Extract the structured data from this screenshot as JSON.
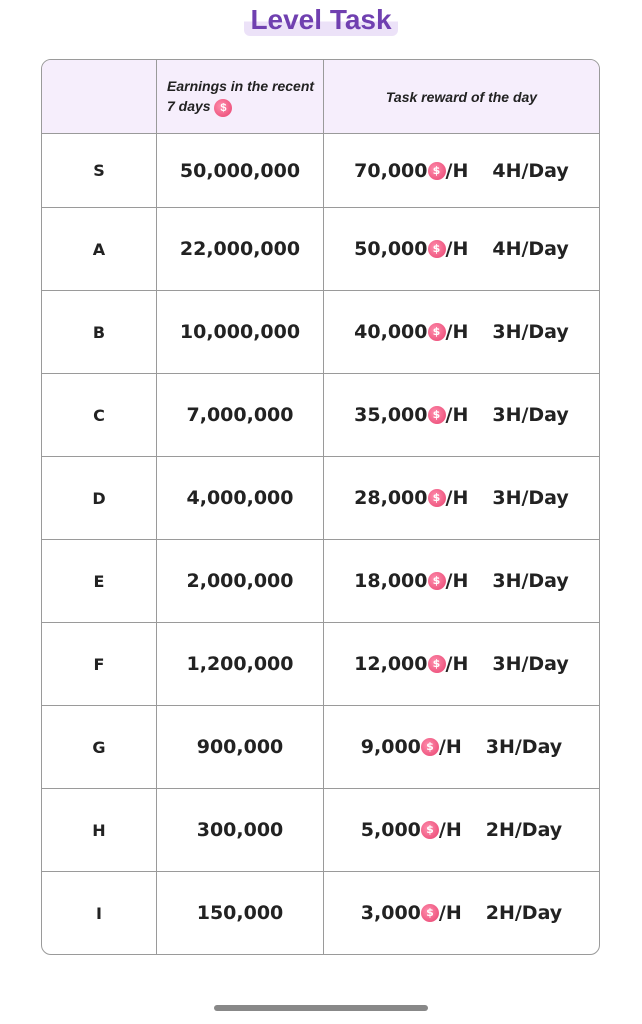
{
  "title": "Level Task",
  "headers": {
    "level": "",
    "earnings": "Earnings in the recent 7 days",
    "reward": "Task reward of the day"
  },
  "coin_icon": "pink-coin-icon",
  "per_hour": "/H",
  "rows": [
    {
      "level": "S",
      "earnings": "50,000,000",
      "reward": "70,000",
      "hours": "4H/Day"
    },
    {
      "level": "A",
      "earnings": "22,000,000",
      "reward": "50,000",
      "hours": "4H/Day"
    },
    {
      "level": "B",
      "earnings": "10,000,000",
      "reward": "40,000",
      "hours": "3H/Day"
    },
    {
      "level": "C",
      "earnings": "7,000,000",
      "reward": "35,000",
      "hours": "3H/Day"
    },
    {
      "level": "D",
      "earnings": "4,000,000",
      "reward": "28,000",
      "hours": "3H/Day"
    },
    {
      "level": "E",
      "earnings": "2,000,000",
      "reward": "18,000",
      "hours": "3H/Day"
    },
    {
      "level": "F",
      "earnings": "1,200,000",
      "reward": "12,000",
      "hours": "3H/Day"
    },
    {
      "level": "G",
      "earnings": "900,000",
      "reward": "9,000",
      "hours": "3H/Day"
    },
    {
      "level": "H",
      "earnings": "300,000",
      "reward": "5,000",
      "hours": "2H/Day"
    },
    {
      "level": "I",
      "earnings": "150,000",
      "reward": "3,000",
      "hours": "2H/Day"
    }
  ]
}
